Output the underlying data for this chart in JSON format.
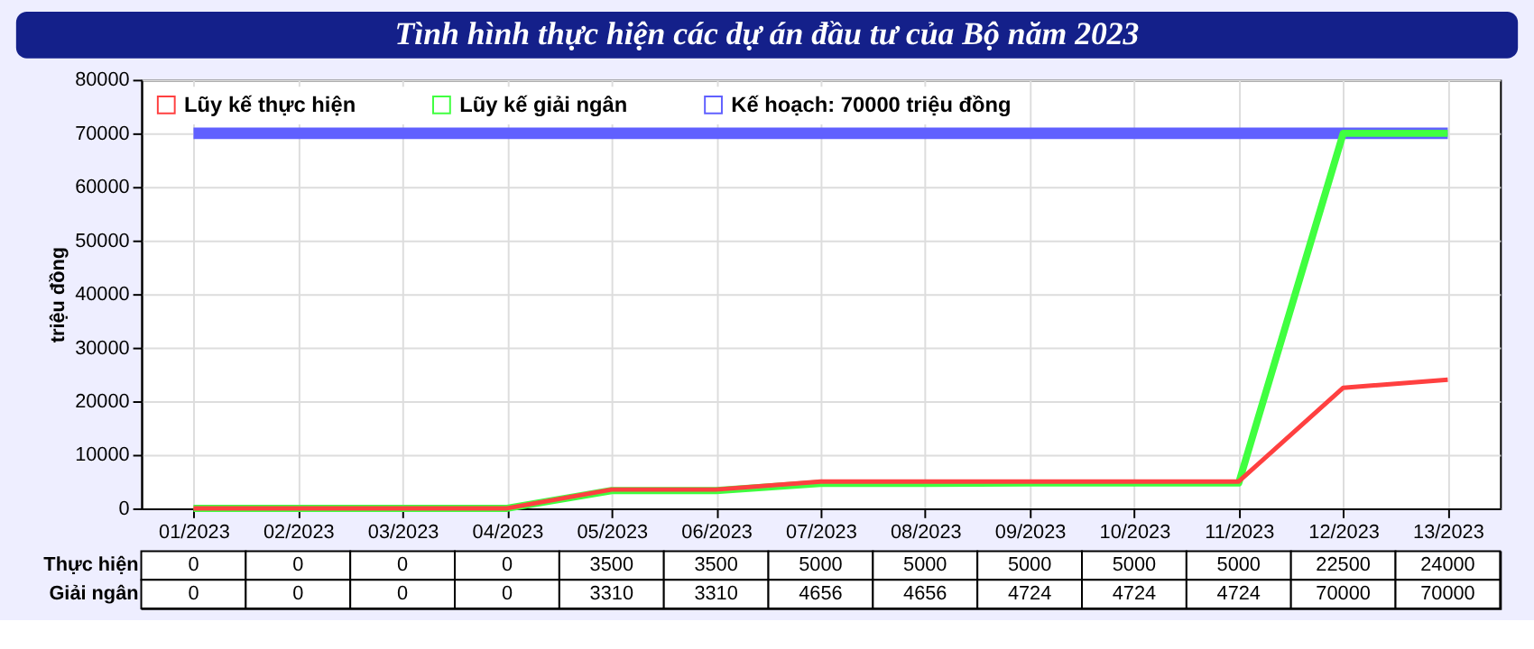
{
  "chart_data": {
    "type": "line",
    "title": "Tình hình thực hiện các dự án đầu tư của Bộ năm 2023",
    "ylabel": "triệu đồng",
    "categories": [
      "01/2023",
      "02/2023",
      "03/2023",
      "04/2023",
      "05/2023",
      "06/2023",
      "07/2023",
      "08/2023",
      "09/2023",
      "10/2023",
      "11/2023",
      "12/2023",
      "13/2023"
    ],
    "series": [
      {
        "name": "Lũy kế thực hiện",
        "color": "#ff4040",
        "values": [
          0,
          0,
          0,
          0,
          3500,
          3500,
          5000,
          5000,
          5000,
          5000,
          5000,
          22500,
          24000
        ],
        "value_labels": [
          "0",
          "0",
          "0",
          "0",
          "3500",
          "3500",
          "5000",
          "5000",
          "5000",
          "5000",
          "5000",
          "22500",
          "24000"
        ]
      },
      {
        "name": "Lũy kế giải ngân",
        "color": "#40ff40",
        "values": [
          0,
          0,
          0,
          0,
          3310,
          3310,
          4656,
          4656,
          4724,
          4724,
          4724,
          70000,
          70000
        ],
        "value_labels": [
          "0",
          "0",
          "0",
          "0",
          "3310",
          "3310",
          "4656",
          "4656",
          "4724",
          "4724",
          "4724",
          "70000",
          "70000"
        ]
      },
      {
        "name": "Kế hoạch: 70000 triệu đồng",
        "color": "#6060ff",
        "values": [
          70000,
          70000,
          70000,
          70000,
          70000,
          70000,
          70000,
          70000,
          70000,
          70000,
          70000,
          70000,
          70000
        ]
      }
    ],
    "annotations": [
      "Thực hiện",
      "Giải ngân"
    ],
    "ylim": [
      0,
      80000
    ],
    "yticks": [
      0,
      10000,
      20000,
      30000,
      40000,
      50000,
      60000,
      70000,
      80000
    ],
    "grid": true,
    "legend": "top left",
    "marker": "none",
    "line_style": "solid"
  }
}
